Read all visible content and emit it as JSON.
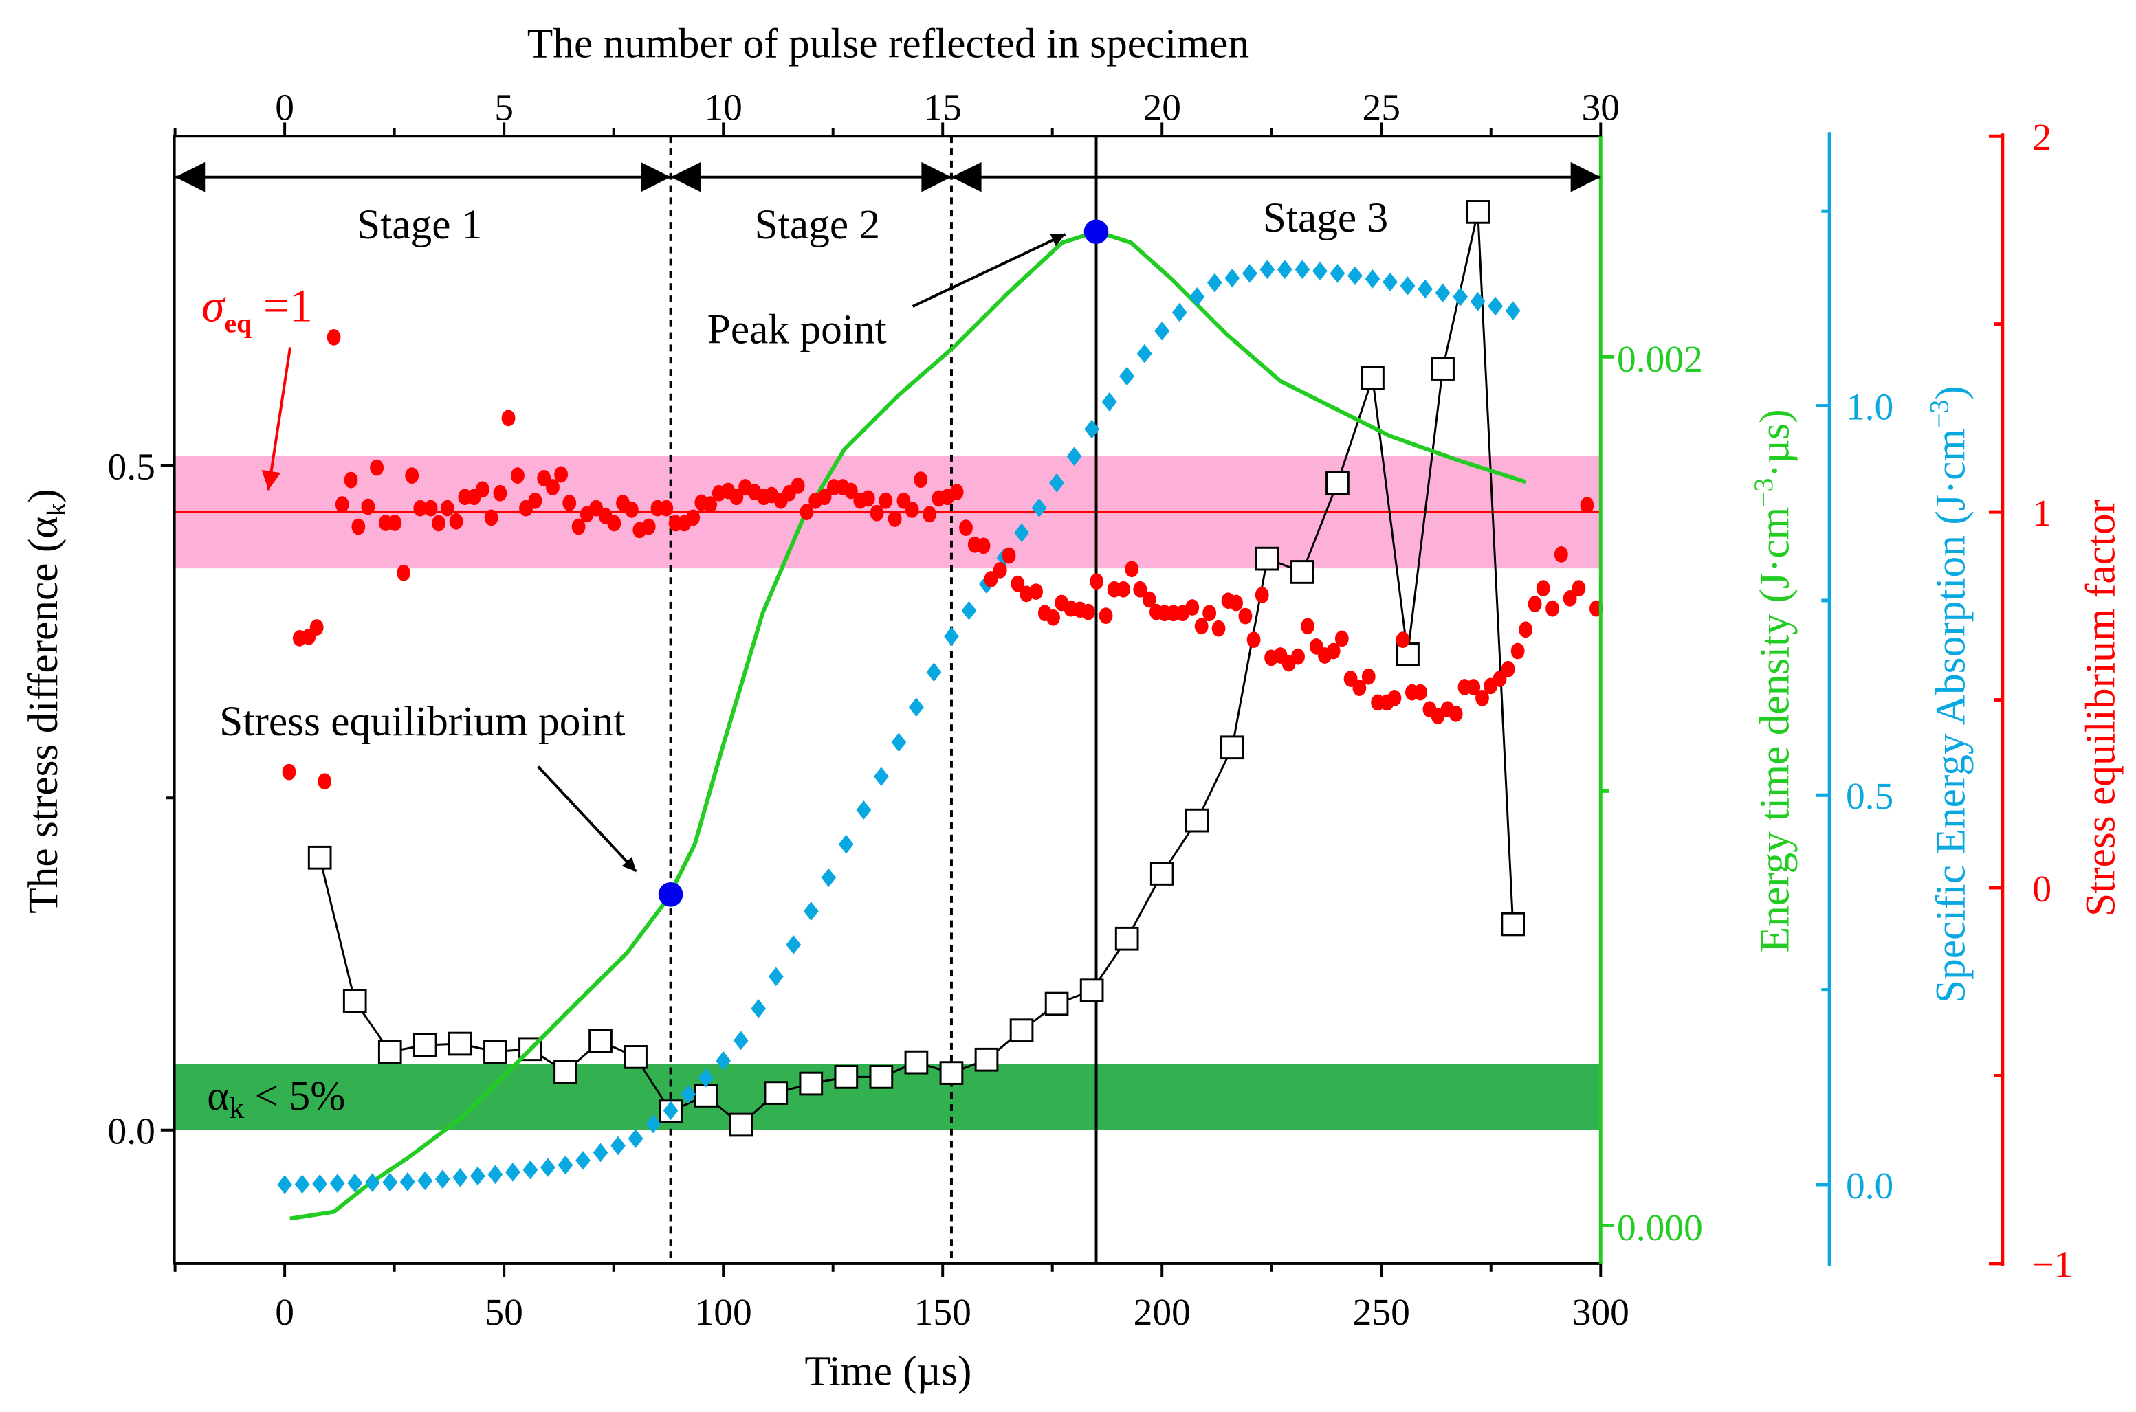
{
  "chart_data": {
    "type": "scatter",
    "titles": {
      "bottom": "Time (µs)",
      "top": "The number of pulse reflected in specimen",
      "left": {
        "main": "The stress difference (α",
        "sub": "k",
        "end": ")"
      },
      "green": {
        "main": "Energy time density (J·cm",
        "sup": "−3",
        "end": "·µs)"
      },
      "blue": {
        "main": "Specific Energy Absorption (J·cm",
        "sup": "−3",
        "end": ")"
      },
      "red": "Stress equilibrium factor"
    },
    "axes": {
      "bottom": {
        "range": [
          -25,
          300
        ],
        "ticks": [
          0,
          50,
          100,
          150,
          200,
          250,
          300
        ],
        "labels": [
          "0",
          "50",
          "100",
          "150",
          "200",
          "250",
          "300"
        ]
      },
      "top": {
        "range": [
          -2.5,
          30
        ],
        "ticks": [
          0,
          5,
          10,
          15,
          20,
          25,
          30
        ],
        "labels": [
          "0",
          "5",
          "10",
          "15",
          "20",
          "25",
          "30"
        ]
      },
      "left": {
        "range": [
          -0.1,
          0.748
        ],
        "ticks": [
          0.0,
          0.5
        ],
        "labels": [
          "0.0",
          "0.5"
        ],
        "minor": [
          0.25
        ]
      },
      "green": {
        "range": [
          -8.78e-05,
          0.00251
        ],
        "ticks": [
          0.0,
          0.002
        ],
        "labels": [
          "0.000",
          "0.002"
        ],
        "minor": [
          0.001
        ],
        "color": "#22cc22"
      },
      "blue": {
        "range": [
          -0.1,
          1.35
        ],
        "ticks": [
          0.0,
          0.5,
          1.0
        ],
        "labels": [
          "0.0",
          "0.5",
          "1.0"
        ],
        "minor": [
          0.25,
          0.75,
          1.25
        ],
        "color": "#0aa8e0"
      },
      "red": {
        "range": [
          -1,
          2
        ],
        "ticks": [
          -1,
          0,
          1,
          2
        ],
        "labels": [
          "−1",
          "0",
          "1",
          "2"
        ],
        "minor": [
          -0.5,
          0.5,
          1.5
        ],
        "color": "#ff0000"
      }
    },
    "bands": {
      "stress_equilibrium_band_red_axis": [
        0.85,
        1.15
      ],
      "stress_equilibrium_line_red_axis": 1,
      "alpha_band_left_axis": [
        0,
        0.05
      ],
      "pink": "#fdb0d8",
      "green": "#33b050"
    },
    "vertical_lines": [
      {
        "t": 88,
        "style": "dashed"
      },
      {
        "t": 152,
        "style": "dashed"
      },
      {
        "t": 185,
        "style": "solid"
      }
    ],
    "stages": [
      {
        "label": "Stage 1",
        "from": -25,
        "to": 88
      },
      {
        "label": "Stage 2",
        "from": 88,
        "to": 152
      },
      {
        "label": "Stage 3",
        "from": 152,
        "to": 300
      }
    ],
    "annotations": {
      "sigma": {
        "symbol": "σ",
        "sub": "eq",
        "rest": " =1"
      },
      "peak": "Peak point",
      "equilibrium": "Stress equilibrium point",
      "alpha": {
        "symbol": "α",
        "sub": "k",
        "rest": " < 5%"
      }
    },
    "series": [
      {
        "name": "Stress difference (αk)",
        "axis": "left",
        "marker": "open-square",
        "color": "#000000",
        "x": [
          8,
          16,
          24,
          32,
          40,
          48,
          56,
          64,
          72,
          80,
          88,
          96,
          104,
          112,
          120,
          128,
          136,
          144,
          152,
          160,
          168,
          176,
          184,
          192,
          200,
          208,
          216,
          224,
          232,
          240,
          248,
          256,
          264,
          272,
          280
        ],
        "y": [
          0.205,
          0.097,
          0.059,
          0.064,
          0.065,
          0.059,
          0.061,
          0.044,
          0.067,
          0.055,
          0.014,
          0.026,
          0.004,
          0.028,
          0.035,
          0.04,
          0.04,
          0.051,
          0.043,
          0.053,
          0.075,
          0.095,
          0.105,
          0.144,
          0.193,
          0.233,
          0.288,
          0.43,
          0.42,
          0.487,
          0.566,
          0.358,
          0.573,
          0.691,
          0.155
        ]
      },
      {
        "name": "Energy time density",
        "axis": "green",
        "marker": "line",
        "color": "#22cc22",
        "x": [
          1.2,
          11.2,
          19,
          28.3,
          40.7,
          53.1,
          65.5,
          78,
          87.3,
          93.5,
          99.7,
          109,
          118.3,
          127.6,
          140,
          152.5,
          164.9,
          177.3,
          185.1,
          192.9,
          202.2,
          214.6,
          227,
          239.4,
          251.9,
          267.4,
          282.9
        ],
        "y": [
          1.57e-05,
          3.13e-05,
          9.4e-05,
          0.000157,
          0.000251,
          0.000376,
          0.000502,
          0.000627,
          0.000752,
          0.000878,
          0.001097,
          0.001411,
          0.00163,
          0.001787,
          0.001912,
          0.002022,
          0.002147,
          0.002263,
          0.002288,
          0.002263,
          0.002179,
          0.002053,
          0.001944,
          0.001881,
          0.001818,
          0.001762,
          0.001712
        ]
      },
      {
        "name": "Specific Energy Absorption",
        "axis": "blue",
        "marker": "diamond",
        "color": "#0aa8e0",
        "x": [
          0,
          4,
          8,
          12,
          16,
          20,
          24,
          28,
          32,
          36,
          40,
          44,
          48,
          52,
          56,
          60,
          64,
          68,
          72,
          76,
          80,
          84,
          88,
          92,
          96,
          100,
          104,
          108,
          112,
          116,
          120,
          124,
          128,
          132,
          136,
          140,
          144,
          148,
          152,
          156,
          160,
          164,
          168,
          172,
          176,
          180,
          184,
          188,
          192,
          196,
          200,
          204,
          208,
          212,
          216,
          220,
          224,
          228,
          232,
          236,
          240,
          244,
          248,
          252,
          256,
          260,
          264,
          268,
          272,
          276,
          280
        ],
        "y": [
          0,
          0.0005,
          0.001,
          0.0015,
          0.002,
          0.0025,
          0.003,
          0.0035,
          0.005,
          0.007,
          0.009,
          0.011,
          0.013,
          0.016,
          0.019,
          0.022,
          0.025,
          0.031,
          0.041,
          0.05,
          0.059,
          0.078,
          0.095,
          0.116,
          0.137,
          0.159,
          0.185,
          0.226,
          0.267,
          0.308,
          0.351,
          0.394,
          0.437,
          0.481,
          0.524,
          0.568,
          0.613,
          0.658,
          0.704,
          0.737,
          0.771,
          0.805,
          0.837,
          0.869,
          0.901,
          0.935,
          0.97,
          1.005,
          1.038,
          1.067,
          1.096,
          1.12,
          1.14,
          1.158,
          1.164,
          1.17,
          1.175,
          1.175,
          1.175,
          1.173,
          1.17,
          1.167,
          1.163,
          1.159,
          1.154,
          1.15,
          1.145,
          1.14,
          1.134,
          1.128,
          1.122
        ]
      },
      {
        "name": "Stress equilibrium factor",
        "axis": "red",
        "marker": "filled-circle",
        "color": "#ff0000",
        "x": [
          1,
          3.4,
          5.5,
          7.3,
          9.1,
          11.2,
          13.1,
          15.1,
          16.8,
          19,
          21,
          23,
          25.1,
          27.1,
          29,
          30.9,
          33.3,
          35.1,
          37.1,
          39.1,
          41.1,
          43.2,
          45.1,
          47.1,
          49.1,
          51,
          53.1,
          55,
          57.1,
          59.1,
          61.1,
          63,
          64.9,
          67,
          68.9,
          71,
          73.1,
          75.1,
          77.1,
          79.1,
          80.9,
          83,
          85,
          87,
          89.1,
          91.1,
          93.1,
          95,
          97,
          99,
          101.1,
          103,
          105,
          107.1,
          109.2,
          111,
          113.1,
          115,
          117,
          119,
          121,
          123.1,
          125.2,
          127.2,
          129.1,
          131.2,
          133,
          135,
          137,
          139.1,
          141.1,
          143,
          145,
          147,
          149.1,
          151.1,
          153.2,
          155.3,
          157.3,
          159.3,
          161,
          163.1,
          165.1,
          167.1,
          169.1,
          171.3,
          173.3,
          175.2,
          177.1,
          179.2,
          181.3,
          183.2,
          185.1,
          187.2,
          189.1,
          191.2,
          193.1,
          195,
          197.1,
          198.7,
          200.6,
          202.6,
          204.7,
          206.9,
          209,
          210.8,
          212.9,
          215.1,
          216.9,
          219,
          220.9,
          222.8,
          224.9,
          227,
          228.9,
          231,
          233.2,
          235.2,
          237.1,
          239.1,
          241,
          243,
          245,
          247.1,
          249.2,
          251.3,
          253,
          254.9,
          257,
          258.9,
          261,
          262.9,
          265.1,
          267,
          269,
          271,
          273,
          274.9,
          277,
          278.9,
          281.1,
          282.9,
          285,
          286.9,
          289,
          291,
          293,
          295,
          296.9,
          299
        ],
        "y": [
          0.308,
          0.664,
          0.668,
          0.693,
          0.283,
          1.465,
          1.02,
          1.085,
          0.961,
          1.014,
          1.118,
          0.971,
          0.971,
          0.838,
          1.097,
          1.01,
          1.01,
          0.97,
          1.01,
          0.975,
          1.04,
          1.04,
          1.06,
          0.985,
          1.05,
          1.25,
          1.097,
          1.01,
          1.03,
          1.09,
          1.066,
          1.1,
          1.024,
          0.961,
          0.994,
          1.01,
          0.99,
          0.97,
          1.024,
          1.006,
          0.952,
          0.961,
          1.01,
          1.01,
          0.97,
          0.97,
          0.985,
          1.025,
          1.02,
          1.05,
          1.056,
          1.04,
          1.066,
          1.053,
          1.04,
          1.045,
          1.03,
          1.05,
          1.07,
          1.0,
          1.03,
          1.04,
          1.066,
          1.066,
          1.056,
          1.03,
          1.036,
          0.997,
          1.03,
          0.982,
          1.03,
          1.006,
          1.086,
          0.994,
          1.036,
          1.04,
          1.053,
          0.958,
          0.913,
          0.91,
          0.821,
          0.845,
          0.884,
          0.809,
          0.782,
          0.788,
          0.731,
          0.719,
          0.758,
          0.743,
          0.74,
          0.734,
          0.815,
          0.724,
          0.794,
          0.794,
          0.848,
          0.794,
          0.767,
          0.734,
          0.731,
          0.731,
          0.731,
          0.746,
          0.696,
          0.731,
          0.69,
          0.764,
          0.758,
          0.723,
          0.66,
          0.779,
          0.612,
          0.618,
          0.597,
          0.615,
          0.696,
          0.642,
          0.618,
          0.63,
          0.663,
          0.556,
          0.532,
          0.562,
          0.493,
          0.493,
          0.505,
          0.66,
          0.52,
          0.52,
          0.475,
          0.457,
          0.475,
          0.463,
          0.534,
          0.534,
          0.505,
          0.537,
          0.556,
          0.582,
          0.63,
          0.687,
          0.755,
          0.797,
          0.743,
          0.887,
          0.77,
          0.797,
          1.018,
          0.743
        ]
      }
    ],
    "highlight_points": [
      {
        "name": "stress-equilibrium-point",
        "t": 88,
        "axis": "green",
        "value": 0.000762,
        "color": "#0000ee"
      },
      {
        "name": "peak-point",
        "t": 185,
        "axis": "green",
        "value": 0.002288,
        "color": "#0000ee"
      }
    ],
    "grid": false,
    "legend": "none"
  }
}
